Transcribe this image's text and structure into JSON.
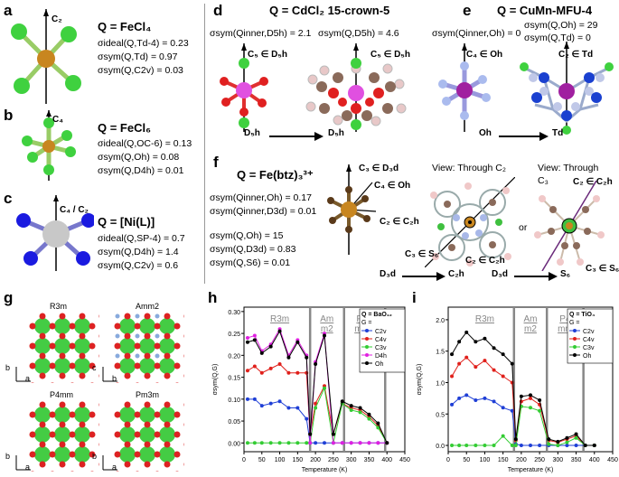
{
  "panels": {
    "a": {
      "label": "a",
      "axis": "C₂",
      "formula": "Q = FeCl₄",
      "lines": [
        "σideal(Q,Td-4) = 0.23",
        "σsym(Q,Td) = 0.97",
        "σsym(Q,C2v) = 0.03"
      ]
    },
    "b": {
      "label": "b",
      "axis": "C₄",
      "formula": "Q = FeCl₆",
      "lines": [
        "σideal(Q,OC-6) = 0.13",
        "σsym(Q,Oh) = 0.08",
        "σsym(Q,D4h) = 0.01"
      ]
    },
    "c": {
      "label": "c",
      "axis": "C₄ / C₂",
      "formula": "Q = [Ni(L)]",
      "lines": [
        "σideal(Q,SP-4) = 0.7",
        "σsym(Q,D4h) = 1.4",
        "σsym(Q,C2v) = 0.6"
      ]
    },
    "d": {
      "label": "d",
      "formula": "Q = CdCl₂ 15-crown-5",
      "sym1": "σsym(Qinner,D5h) = 2.1",
      "sym2": "σsym(Q,D5h) = 4.6",
      "axis1": "C₅ ∈ D₅h",
      "axis2": "C₅ ∈ D₅h",
      "from": "D₅h",
      "to": "D₅h"
    },
    "e": {
      "label": "e",
      "formula": "Q = CuMn-MFU-4",
      "sym1": "σsym(Qinner,Oh) = 0",
      "sym2": "σsym(Q,Oh) = 29",
      "sym3": "σsym(Q,Td) = 0",
      "axis1": "C₄ ∈ Oh",
      "axis2": "C₂ ∈ Td",
      "from": "Oh",
      "to": "Td"
    },
    "f": {
      "label": "f",
      "formula": "Q = Fe(btz)₃³⁺",
      "lines": [
        "σsym(Qinner,Oh) = 0.17",
        "σsym(Qinner,D3d) = 0.01",
        "",
        "σsym(Q,Oh)      = 15",
        "σsym(Q,D3d) = 0.83",
        "σsym(Q,S6)   = 0.01"
      ],
      "axes": [
        "C₃ ∈ D₃d",
        "C₄ ∈ Oh",
        "C₂ ∈ C₂h"
      ],
      "view1": "View: Through C₂",
      "view2a": "View: Through",
      "view2b": "C₃",
      "or": "or",
      "v1ax1": "C₃ ∈ S₆",
      "v1ax2": "C₂ ∈ C₂h",
      "v2ax1": "C₂ ∈ C₂h",
      "v2ax2": "C₃ ∈ S₆",
      "arrow1_from": "D₃d",
      "arrow1_to": "C₂h",
      "arrow2_from": "D₃d",
      "arrow2_to": "S₆"
    },
    "g": {
      "label": "g",
      "cells": [
        "R3m",
        "Amm2",
        "P4mm",
        "Pm3m"
      ],
      "axis_b": "b",
      "axis_a": "a",
      "axis_c": "c"
    },
    "h": {
      "label": "h"
    },
    "i": {
      "label": "i"
    }
  },
  "chart_data": [
    {
      "type": "line",
      "panel": "h",
      "title": "Q = BaO₁₂",
      "legend_prefix": "G =",
      "xlabel": "Temperature (K)",
      "ylabel": "σsym(Q,G)",
      "xlim": [
        0,
        450
      ],
      "ylim": [
        -0.02,
        0.31
      ],
      "xticks": [
        0,
        50,
        100,
        150,
        200,
        250,
        300,
        350,
        400,
        450
      ],
      "yticks": [
        0.0,
        0.05,
        0.1,
        0.15,
        0.2,
        0.25,
        0.3
      ],
      "ytick_labels": [
        "0.00",
        "0.05",
        "0.10",
        "0.15",
        "0.20",
        "0.25",
        "0.30"
      ],
      "phase_lines": [
        185,
        280,
        395
      ],
      "phases": [
        {
          "name": "R3m",
          "x": 100
        },
        {
          "name": "Am m2",
          "x": 232
        },
        {
          "name": "P4 mm",
          "x": 330
        },
        {
          "name": "Pm 3m",
          "x": 420
        }
      ],
      "x": [
        10,
        30,
        50,
        75,
        100,
        125,
        150,
        175,
        185,
        200,
        225,
        250,
        275,
        300,
        325,
        350,
        375,
        400
      ],
      "series": [
        {
          "name": "C2v",
          "color": "#1f3fd6",
          "values": [
            0.1,
            0.1,
            0.085,
            0.09,
            0.095,
            0.08,
            0.08,
            0.055,
            0.0,
            0.0,
            0.0,
            0.0,
            0.0,
            0.0,
            0.0,
            0.0,
            0.0,
            0.0
          ]
        },
        {
          "name": "C4v",
          "color": "#e0201b",
          "values": [
            0.165,
            0.175,
            0.16,
            0.17,
            0.18,
            0.16,
            0.16,
            0.16,
            0.02,
            0.09,
            0.13,
            0.02,
            0.09,
            0.08,
            0.075,
            0.06,
            0.04,
            0.0
          ]
        },
        {
          "name": "C3v",
          "color": "#33cc33",
          "values": [
            0.0,
            0.0,
            0.0,
            0.0,
            0.0,
            0.0,
            0.0,
            0.0,
            0.0,
            0.08,
            0.125,
            0.0,
            0.09,
            0.075,
            0.07,
            0.055,
            0.035,
            0.0
          ]
        },
        {
          "name": "D4h",
          "color": "#e020e0",
          "values": [
            0.24,
            0.245,
            0.21,
            0.225,
            0.26,
            0.2,
            0.235,
            0.2,
            0.0,
            0.185,
            0.25,
            0.0,
            0.0,
            0.0,
            0.0,
            0.0,
            0.0,
            0.0
          ]
        },
        {
          "name": "Oh",
          "color": "#000000",
          "values": [
            0.23,
            0.235,
            0.205,
            0.22,
            0.255,
            0.195,
            0.23,
            0.195,
            0.02,
            0.18,
            0.245,
            0.02,
            0.095,
            0.085,
            0.08,
            0.065,
            0.045,
            0.0
          ]
        }
      ]
    },
    {
      "type": "line",
      "panel": "i",
      "title": "Q = TiO₄",
      "legend_prefix": "G =",
      "xlabel": "Temperature (K)",
      "ylabel": "σsym(Q,G)",
      "xlim": [
        0,
        450
      ],
      "ylim": [
        -0.1,
        2.2
      ],
      "xticks": [
        0,
        50,
        100,
        150,
        200,
        250,
        300,
        350,
        400,
        450
      ],
      "yticks": [
        0.0,
        0.5,
        1.0,
        1.5,
        2.0
      ],
      "ytick_labels": [
        "0.0",
        "0.5",
        "1.0",
        "1.5",
        "2.0"
      ],
      "phase_lines": [
        180,
        270,
        370
      ],
      "phases": [
        {
          "name": "R3m",
          "x": 100
        },
        {
          "name": "Am m2",
          "x": 225
        },
        {
          "name": "P4 mm",
          "x": 320
        },
        {
          "name": "Pm 3m",
          "x": 410
        }
      ],
      "x": [
        10,
        30,
        50,
        75,
        100,
        125,
        150,
        175,
        185,
        200,
        225,
        250,
        275,
        300,
        325,
        350,
        375,
        400
      ],
      "series": [
        {
          "name": "C2v",
          "color": "#1f3fd6",
          "values": [
            0.65,
            0.75,
            0.8,
            0.72,
            0.75,
            0.7,
            0.6,
            0.55,
            0.02,
            0.0,
            0.0,
            0.0,
            0.0,
            0.0,
            0.0,
            0.0,
            0.0,
            0.0
          ]
        },
        {
          "name": "C4v",
          "color": "#e0201b",
          "values": [
            1.1,
            1.3,
            1.4,
            1.25,
            1.35,
            1.2,
            1.1,
            1.0,
            0.08,
            0.7,
            0.75,
            0.65,
            0.08,
            0.05,
            0.1,
            0.15,
            0.0,
            0.0
          ]
        },
        {
          "name": "C3v",
          "color": "#33cc33",
          "values": [
            0.0,
            0.0,
            0.0,
            0.0,
            0.0,
            0.0,
            0.15,
            0.0,
            0.0,
            0.62,
            0.6,
            0.55,
            0.02,
            0.0,
            0.05,
            0.12,
            0.0,
            0.0
          ]
        },
        {
          "name": "Oh",
          "color": "#000000",
          "values": [
            1.45,
            1.65,
            1.8,
            1.65,
            1.7,
            1.55,
            1.45,
            1.3,
            0.1,
            0.78,
            0.8,
            0.72,
            0.1,
            0.06,
            0.12,
            0.18,
            0.0,
            0.0
          ]
        }
      ]
    }
  ]
}
